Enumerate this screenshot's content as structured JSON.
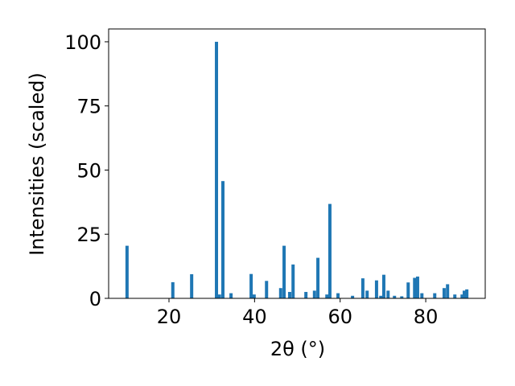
{
  "chart_data": {
    "type": "bar",
    "xlabel": "2θ (°)",
    "ylabel": "Intensities (scaled)",
    "color": "#1f77b4",
    "x": [
      10.2,
      20.9,
      25.3,
      31.1,
      31.8,
      32.6,
      34.5,
      39.2,
      39.9,
      42.8,
      46.1,
      46.9,
      48.2,
      49.0,
      52.0,
      54.0,
      54.8,
      56.9,
      57.6,
      59.5,
      62.9,
      65.3,
      66.3,
      68.5,
      69.5,
      70.2,
      71.2,
      72.7,
      74.4,
      75.9,
      77.4,
      78.1,
      79.1,
      82.1,
      84.3,
      85.1,
      86.8,
      88.5,
      89.0,
      89.6
    ],
    "values": [
      20.5,
      6.3,
      9.4,
      100,
      1.5,
      45.7,
      2,
      9.5,
      1.5,
      6.8,
      4,
      20.5,
      2.5,
      13.2,
      2.5,
      3,
      15.8,
      1.5,
      36.8,
      2,
      1,
      7.8,
      3,
      7,
      1,
      9.2,
      3,
      1,
      0.8,
      6.2,
      8,
      8.5,
      2,
      2,
      4,
      5.5,
      1.5,
      1.5,
      3,
      3.5
    ],
    "xlim": [
      5.9,
      93.9
    ],
    "ylim": [
      0,
      105
    ],
    "xticks": [
      20,
      40,
      60,
      80
    ],
    "yticks": [
      0,
      25,
      50,
      75,
      100
    ]
  }
}
